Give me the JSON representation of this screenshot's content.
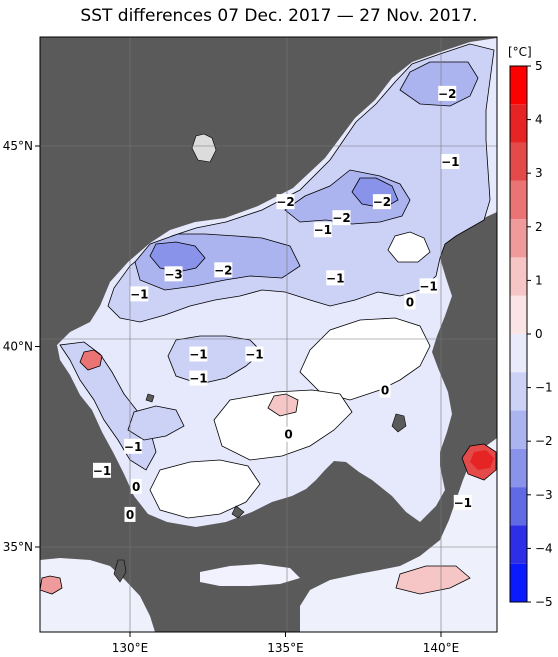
{
  "title": "SST differences 07 Dec. 2017 — 27 Nov. 2017.",
  "colors": {
    "land": "#5a5a5a",
    "ocean_zero": "#ffffff",
    "border": "#000000",
    "grid": "#777777"
  },
  "axes": {
    "x_ticks": [
      {
        "value": 130,
        "label": "130°E"
      },
      {
        "value": 135,
        "label": "135°E"
      },
      {
        "value": 140,
        "label": "140°E"
      }
    ],
    "y_ticks": [
      {
        "value": 45,
        "label": "45°N"
      },
      {
        "value": 40,
        "label": "40°N"
      },
      {
        "value": 35,
        "label": "35°N"
      }
    ],
    "lon_range": [
      127,
      142
    ],
    "lat_range": [
      33,
      48
    ]
  },
  "colorbar": {
    "unit": "[°C]",
    "min": -5,
    "max": 5,
    "ticks": [
      {
        "value": 5,
        "label": "5"
      },
      {
        "value": 4,
        "label": "4"
      },
      {
        "value": 3,
        "label": "3"
      },
      {
        "value": 2,
        "label": "2"
      },
      {
        "value": 1,
        "label": "1"
      },
      {
        "value": 0,
        "label": "0"
      },
      {
        "value": -1,
        "label": "−1"
      },
      {
        "value": -2,
        "label": "−2"
      },
      {
        "value": -3,
        "label": "−3"
      },
      {
        "value": -4,
        "label": "−4"
      },
      {
        "value": -5,
        "label": "−5"
      }
    ],
    "neg_colors": [
      "#e9ebfb",
      "#ccd1f6",
      "#acb4f0",
      "#8a93ea",
      "#5f6ae4",
      "#2d2fe6",
      "#0a1bff"
    ],
    "pos_colors": [
      "#fbe4e4",
      "#f6c5c5",
      "#f09b9b",
      "#ea7373",
      "#e44a4a",
      "#e62424",
      "#ff0000"
    ]
  },
  "contour_labels": [
    {
      "text": "−2",
      "lon": 140.2,
      "lat": 46.3
    },
    {
      "text": "−1",
      "lon": 140.3,
      "lat": 44.6
    },
    {
      "text": "−2",
      "lon": 135.0,
      "lat": 43.6
    },
    {
      "text": "−2",
      "lon": 138.1,
      "lat": 43.6
    },
    {
      "text": "−2",
      "lon": 136.8,
      "lat": 43.2
    },
    {
      "text": "−1",
      "lon": 136.2,
      "lat": 42.9
    },
    {
      "text": "−3",
      "lon": 131.4,
      "lat": 41.8
    },
    {
      "text": "−2",
      "lon": 133.0,
      "lat": 41.9
    },
    {
      "text": "−1",
      "lon": 130.3,
      "lat": 41.3
    },
    {
      "text": "−1",
      "lon": 136.6,
      "lat": 41.7
    },
    {
      "text": "−1",
      "lon": 139.6,
      "lat": 41.5
    },
    {
      "text": "0",
      "lon": 139.0,
      "lat": 41.1
    },
    {
      "text": "−1",
      "lon": 132.2,
      "lat": 39.8
    },
    {
      "text": "−1",
      "lon": 134.0,
      "lat": 39.8
    },
    {
      "text": "−1",
      "lon": 132.2,
      "lat": 39.2
    },
    {
      "text": "0",
      "lon": 138.2,
      "lat": 38.9
    },
    {
      "text": "0",
      "lon": 135.1,
      "lat": 37.8
    },
    {
      "text": "−1",
      "lon": 130.1,
      "lat": 37.5
    },
    {
      "text": "−1",
      "lon": 129.1,
      "lat": 36.9
    },
    {
      "text": "0",
      "lon": 130.2,
      "lat": 36.5
    },
    {
      "text": "0",
      "lon": 130.0,
      "lat": 35.8
    },
    {
      "text": "−1",
      "lon": 140.7,
      "lat": 36.1
    }
  ]
}
